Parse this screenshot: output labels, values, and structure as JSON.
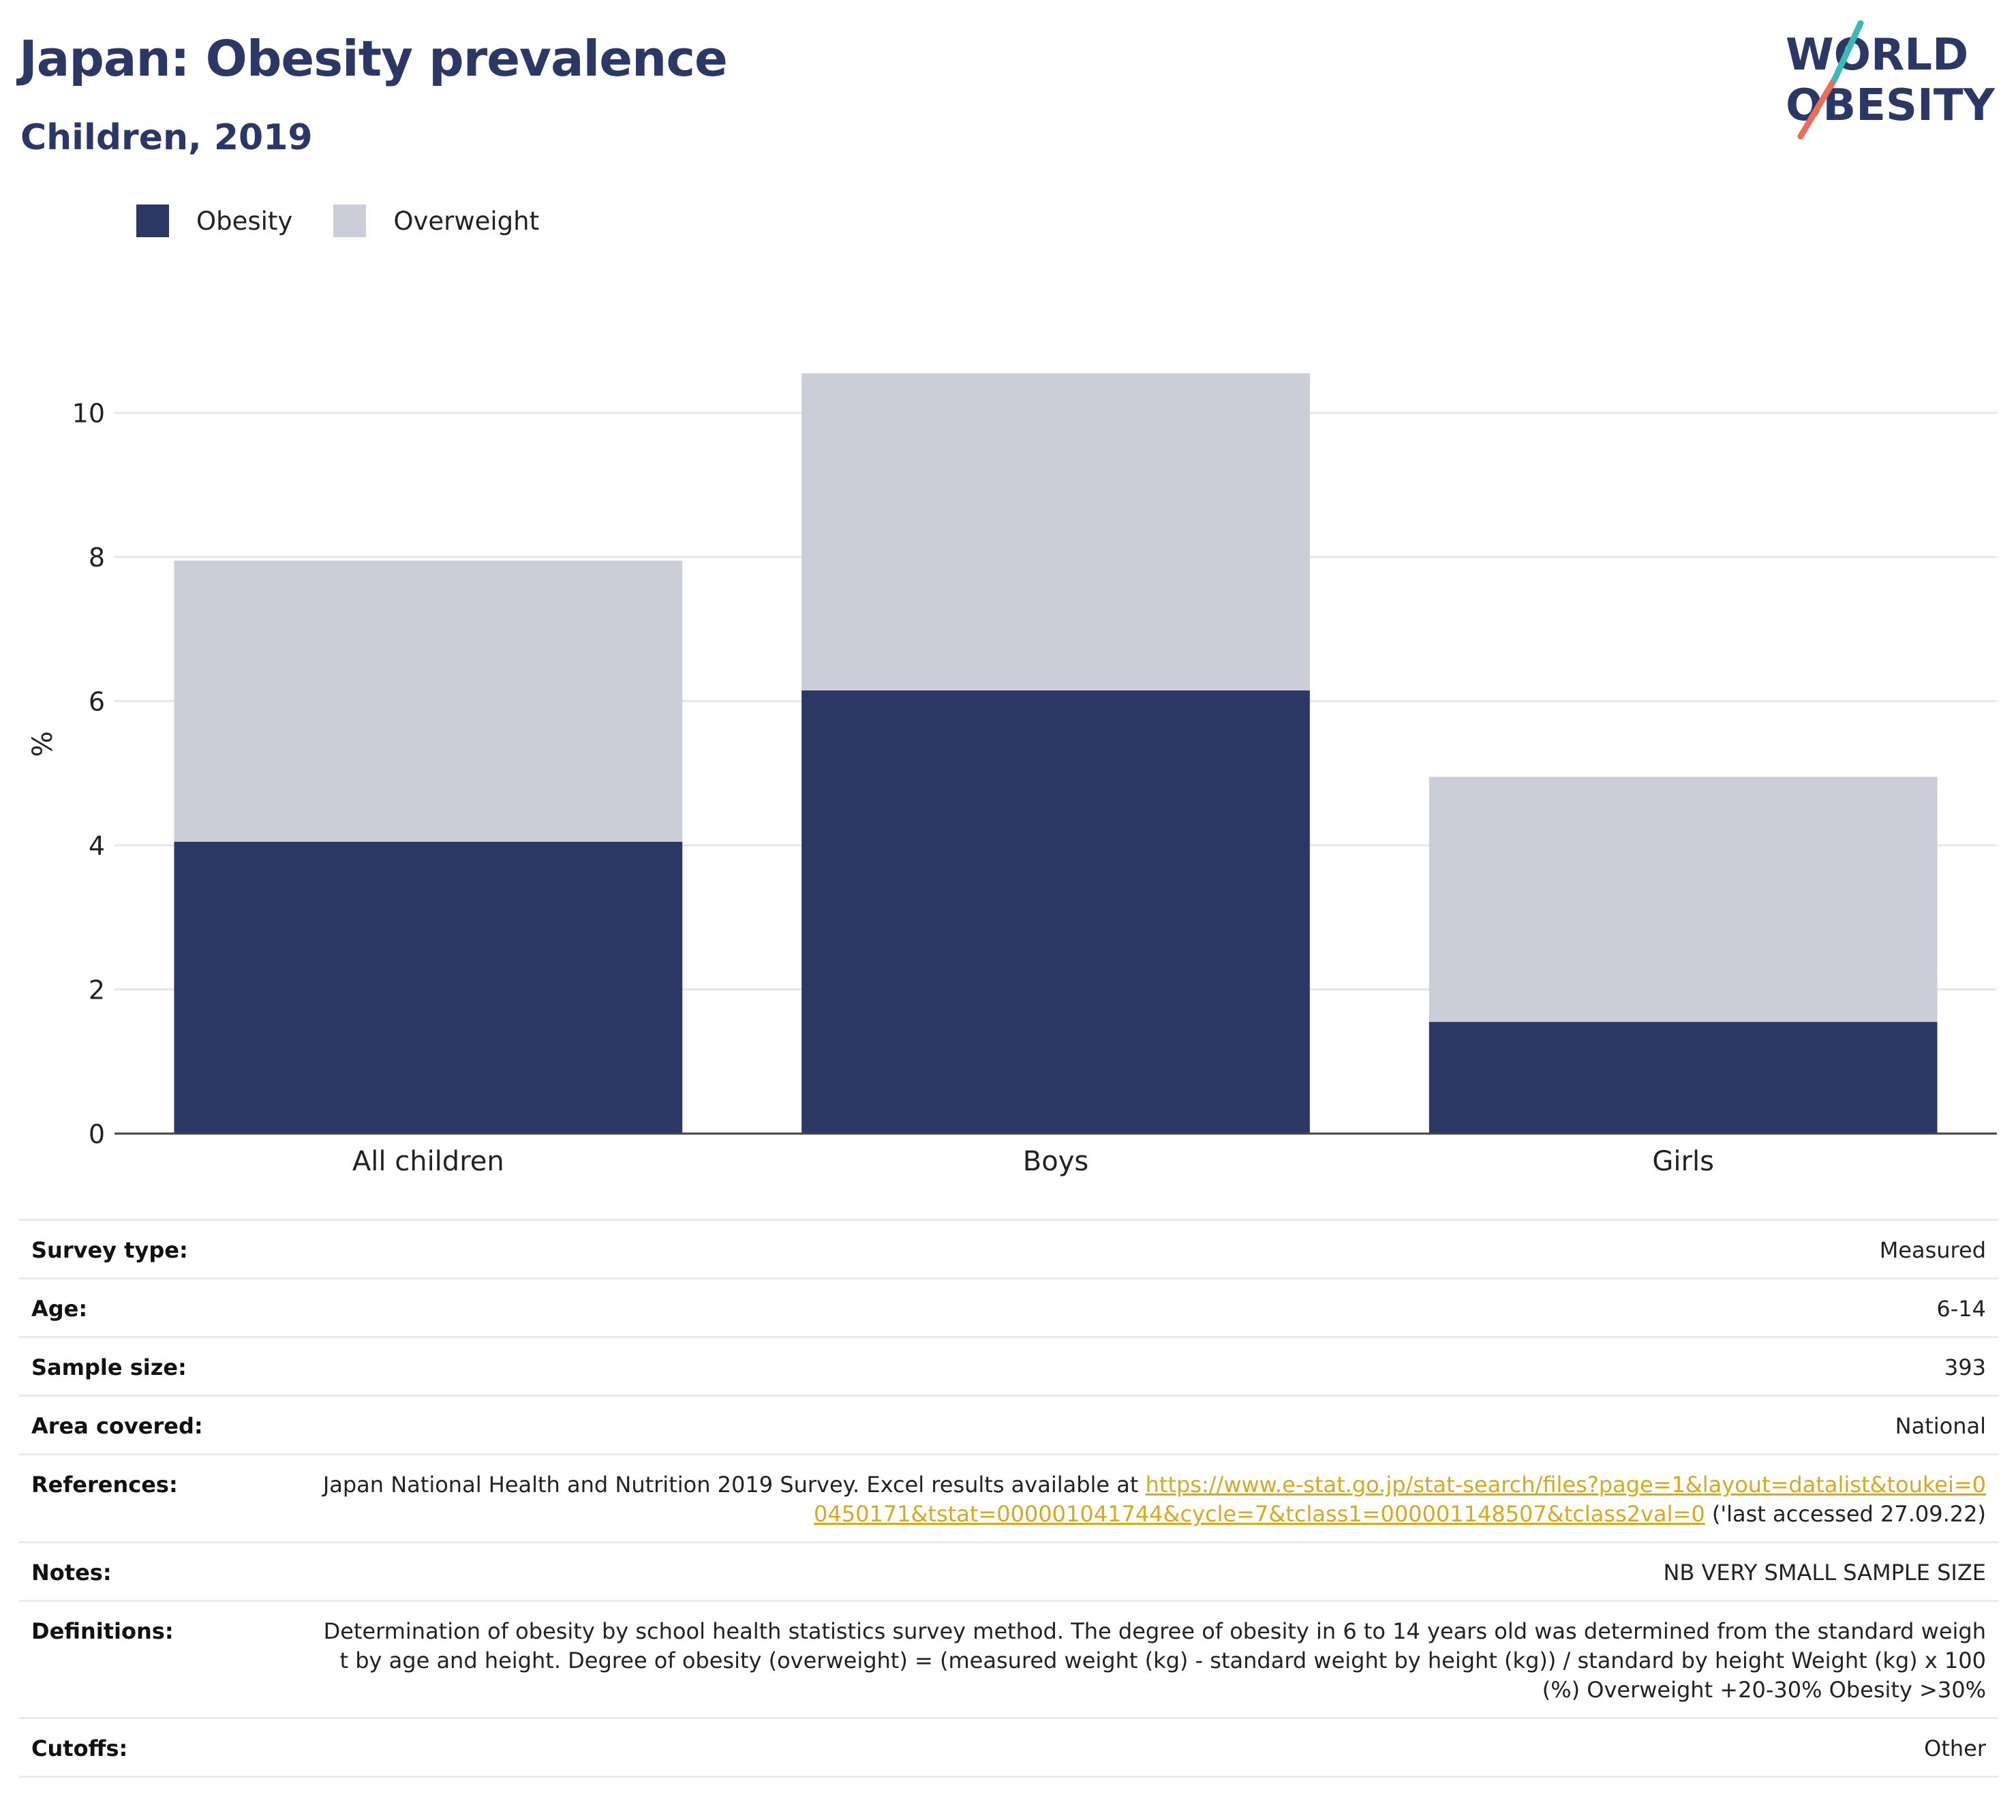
{
  "header": {
    "title": "Japan: Obesity prevalence",
    "subtitle": "Children, 2019"
  },
  "logo": {
    "line1": "WORLD",
    "line2": "OBESITY",
    "slash_colors": [
      "#e8705a",
      "#3bb8b8"
    ]
  },
  "legend": [
    {
      "label": "Obesity",
      "color": "#2b3765"
    },
    {
      "label": "Overweight",
      "color": "#cbcdd8"
    }
  ],
  "chart_data": {
    "type": "bar",
    "stacked": true,
    "categories": [
      "All children",
      "Boys",
      "Girls"
    ],
    "series": [
      {
        "name": "Obesity",
        "values": [
          4.05,
          6.15,
          1.55
        ],
        "color": "#2b3765"
      },
      {
        "name": "Overweight",
        "values": [
          3.9,
          4.4,
          3.4
        ],
        "color": "#cbcdd8"
      }
    ],
    "ylabel": "%",
    "ylim": [
      0,
      11
    ],
    "yticks": [
      0,
      2,
      4,
      6,
      8,
      10
    ],
    "grid": true,
    "legend_position": "top-left"
  },
  "metadata": [
    {
      "key": "Survey type:",
      "value": "Measured"
    },
    {
      "key": "Age:",
      "value": "6-14"
    },
    {
      "key": "Sample size:",
      "value": "393"
    },
    {
      "key": "Area covered:",
      "value": "National"
    },
    {
      "key": "References:",
      "value_before": "Japan National Health and Nutrition 2019 Survey. Excel results available at ",
      "link": "https://www.e-stat.go.jp/stat-search/files?page=1&layout=datalist&toukei=00450171&tstat=000001041744&cycle=7&tclass1=000001148507&tclass2val=0",
      "value_after": " ('last accessed 27.09.22)"
    },
    {
      "key": "Notes:",
      "value": "NB VERY SMALL SAMPLE SIZE"
    },
    {
      "key": "Definitions:",
      "value": "Determination of obesity by school health statistics survey method. The degree of obesity in 6 to 14 years old was determined from the standard weight by age and height. Degree of obesity (overweight) = (measured weight (kg) - standard weight by height (kg)) / standard by height Weight (kg) x 100 (%) Overweight +20-30% Obesity >30%"
    },
    {
      "key": "Cutoffs:",
      "value": "Other"
    }
  ]
}
